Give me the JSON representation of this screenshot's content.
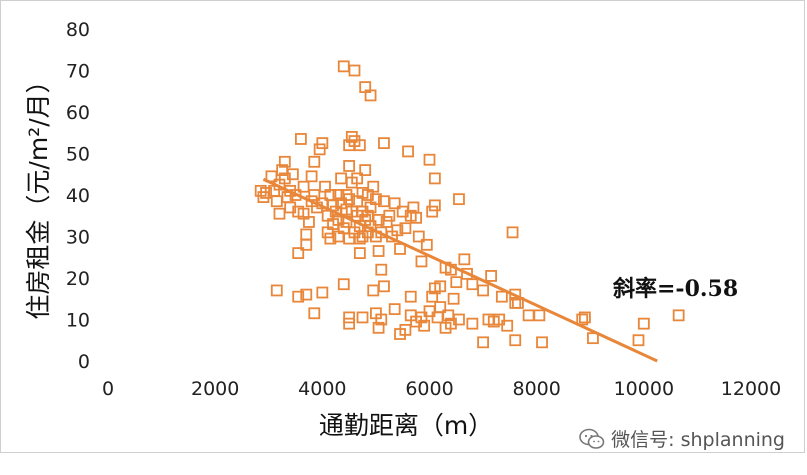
{
  "chart_data": {
    "type": "scatter",
    "title": "",
    "xlabel": "通勤距离（m）",
    "ylabel": "住房租金（元/m²/月）",
    "xlim": [
      0,
      12000
    ],
    "ylim": [
      0,
      80
    ],
    "xticks": [
      0,
      2000,
      4000,
      6000,
      8000,
      10000,
      12000
    ],
    "yticks": [
      0,
      10,
      20,
      30,
      40,
      50,
      60,
      70,
      80
    ],
    "grid": false,
    "legend": "none",
    "marker_color": "#E8863A",
    "trendline": {
      "color": "#E8863A",
      "points": [
        [
          2900,
          43.8
        ],
        [
          10250,
          0
        ]
      ],
      "annotation": "斜率=-0.58"
    },
    "points": [
      [
        2850,
        41
      ],
      [
        2900,
        39.5
      ],
      [
        2950,
        40.5
      ],
      [
        3050,
        44.5
      ],
      [
        3100,
        41
      ],
      [
        3150,
        38.5
      ],
      [
        3200,
        35.5
      ],
      [
        3200,
        42.5
      ],
      [
        3250,
        46
      ],
      [
        3300,
        48
      ],
      [
        3300,
        44
      ],
      [
        3350,
        39.5
      ],
      [
        3400,
        41
      ],
      [
        3400,
        37
      ],
      [
        3450,
        45
      ],
      [
        3500,
        40
      ],
      [
        3550,
        36
      ],
      [
        3550,
        26
      ],
      [
        3600,
        53.5
      ],
      [
        3650,
        42
      ],
      [
        3650,
        35.5
      ],
      [
        3700,
        30.5
      ],
      [
        3700,
        28
      ],
      [
        3750,
        33.5
      ],
      [
        3800,
        38.5
      ],
      [
        3800,
        44.5
      ],
      [
        3850,
        48
      ],
      [
        3850,
        40
      ],
      [
        3900,
        37
      ],
      [
        3950,
        51
      ],
      [
        4000,
        52.5
      ],
      [
        4000,
        38
      ],
      [
        4050,
        42
      ],
      [
        4100,
        35
      ],
      [
        4100,
        31
      ],
      [
        4150,
        29.5
      ],
      [
        4150,
        40
      ],
      [
        4200,
        33
      ],
      [
        4200,
        37.5
      ],
      [
        4250,
        36
      ],
      [
        4300,
        40
      ],
      [
        4300,
        34
      ],
      [
        4300,
        30
      ],
      [
        4350,
        38
      ],
      [
        4350,
        44
      ],
      [
        4400,
        32
      ],
      [
        4400,
        71
      ],
      [
        4450,
        36.5
      ],
      [
        4450,
        40
      ],
      [
        4450,
        33.5
      ],
      [
        4500,
        47
      ],
      [
        4500,
        52
      ],
      [
        4500,
        39
      ],
      [
        4500,
        29.5
      ],
      [
        4550,
        54
      ],
      [
        4550,
        43
      ],
      [
        4550,
        36
      ],
      [
        4600,
        31
      ],
      [
        4600,
        53
      ],
      [
        4600,
        70
      ],
      [
        4650,
        44
      ],
      [
        4650,
        38.5
      ],
      [
        4650,
        35
      ],
      [
        4700,
        29.5
      ],
      [
        4700,
        32.5
      ],
      [
        4700,
        26
      ],
      [
        4700,
        52
      ],
      [
        4750,
        40.5
      ],
      [
        4750,
        36
      ],
      [
        4750,
        30
      ],
      [
        4800,
        34
      ],
      [
        4800,
        46
      ],
      [
        4800,
        66
      ],
      [
        4850,
        31
      ],
      [
        4850,
        40
      ],
      [
        4850,
        35
      ],
      [
        4900,
        64
      ],
      [
        4900,
        32.5
      ],
      [
        4900,
        37
      ],
      [
        4950,
        42
      ],
      [
        5000,
        30
      ],
      [
        5000,
        39
      ],
      [
        5050,
        26.5
      ],
      [
        5050,
        34
      ],
      [
        5100,
        22
      ],
      [
        5100,
        31
      ],
      [
        5150,
        38.5
      ],
      [
        5150,
        52.5
      ],
      [
        5200,
        33.5
      ],
      [
        5250,
        35
      ],
      [
        5300,
        30
      ],
      [
        5350,
        38
      ],
      [
        5400,
        31.5
      ],
      [
        5450,
        27
      ],
      [
        5500,
        36
      ],
      [
        5550,
        32
      ],
      [
        5600,
        50.5
      ],
      [
        5650,
        35
      ],
      [
        5700,
        37
      ],
      [
        5750,
        34.5
      ],
      [
        5800,
        30
      ],
      [
        5850,
        24
      ],
      [
        5950,
        28
      ],
      [
        6000,
        48.5
      ],
      [
        6050,
        36
      ],
      [
        6100,
        44
      ],
      [
        6100,
        37.5
      ],
      [
        6200,
        18
      ],
      [
        6300,
        22.5
      ],
      [
        6400,
        22
      ],
      [
        6550,
        39
      ],
      [
        6650,
        24.5
      ],
      [
        6700,
        21
      ],
      [
        6800,
        18.5
      ],
      [
        7000,
        17
      ],
      [
        7150,
        20.5
      ],
      [
        7350,
        15.5
      ],
      [
        7550,
        31
      ],
      [
        7600,
        16
      ],
      [
        7600,
        14
      ],
      [
        8900,
        10.5
      ],
      [
        9900,
        5
      ],
      [
        10000,
        9
      ],
      [
        10650,
        11
      ],
      [
        3150,
        17
      ],
      [
        3550,
        15.5
      ],
      [
        3700,
        16
      ],
      [
        3850,
        11.5
      ],
      [
        4000,
        16.5
      ],
      [
        4400,
        18.5
      ],
      [
        4500,
        9
      ],
      [
        4500,
        10.5
      ],
      [
        4750,
        10.5
      ],
      [
        4950,
        17
      ],
      [
        5000,
        11.5
      ],
      [
        5050,
        8
      ],
      [
        5100,
        10
      ],
      [
        5150,
        18
      ],
      [
        5350,
        12.5
      ],
      [
        5450,
        6.5
      ],
      [
        5550,
        7.5
      ],
      [
        5650,
        11
      ],
      [
        5650,
        15.5
      ],
      [
        5750,
        9.5
      ],
      [
        5850,
        10.5
      ],
      [
        5900,
        8.5
      ],
      [
        6000,
        12
      ],
      [
        6050,
        15.5
      ],
      [
        6100,
        17.5
      ],
      [
        6150,
        10.5
      ],
      [
        6200,
        13
      ],
      [
        6300,
        8
      ],
      [
        6350,
        11
      ],
      [
        6400,
        9
      ],
      [
        6450,
        15
      ],
      [
        6500,
        19
      ],
      [
        6550,
        10
      ],
      [
        6800,
        9
      ],
      [
        7000,
        4.5
      ],
      [
        7100,
        10
      ],
      [
        7200,
        9.5
      ],
      [
        7300,
        10
      ],
      [
        7450,
        8.5
      ],
      [
        7600,
        5
      ],
      [
        7650,
        14
      ],
      [
        7850,
        11
      ],
      [
        8050,
        11
      ],
      [
        8100,
        4.5
      ],
      [
        8850,
        10
      ],
      [
        9050,
        5.5
      ]
    ]
  },
  "watermark": {
    "icon": "wechat-icon",
    "text": "微信号: shplanning"
  }
}
